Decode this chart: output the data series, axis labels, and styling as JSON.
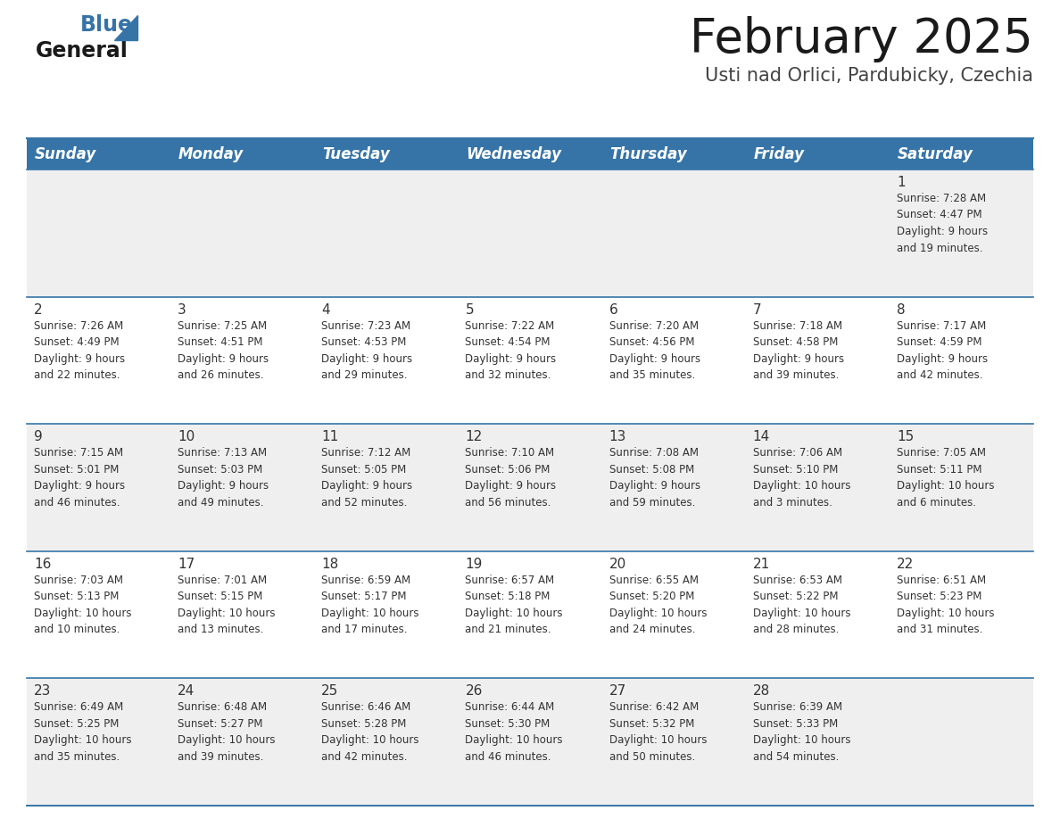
{
  "title": "February 2025",
  "subtitle": "Usti nad Orlici, Pardubicky, Czechia",
  "header_color": "#3674a8",
  "header_text_color": "#FFFFFF",
  "background_color": "#FFFFFF",
  "cell_bg_odd": "#efefef",
  "cell_bg_even": "#FFFFFF",
  "divider_color": "#3674a8",
  "day_names": [
    "Sunday",
    "Monday",
    "Tuesday",
    "Wednesday",
    "Thursday",
    "Friday",
    "Saturday"
  ],
  "title_fontsize": 38,
  "subtitle_fontsize": 15,
  "header_fontsize": 12,
  "cell_fontsize": 8.5,
  "day_number_fontsize": 11,
  "calendar": [
    [
      {
        "day": "",
        "info": ""
      },
      {
        "day": "",
        "info": ""
      },
      {
        "day": "",
        "info": ""
      },
      {
        "day": "",
        "info": ""
      },
      {
        "day": "",
        "info": ""
      },
      {
        "day": "",
        "info": ""
      },
      {
        "day": "1",
        "info": "Sunrise: 7:28 AM\nSunset: 4:47 PM\nDaylight: 9 hours\nand 19 minutes."
      }
    ],
    [
      {
        "day": "2",
        "info": "Sunrise: 7:26 AM\nSunset: 4:49 PM\nDaylight: 9 hours\nand 22 minutes."
      },
      {
        "day": "3",
        "info": "Sunrise: 7:25 AM\nSunset: 4:51 PM\nDaylight: 9 hours\nand 26 minutes."
      },
      {
        "day": "4",
        "info": "Sunrise: 7:23 AM\nSunset: 4:53 PM\nDaylight: 9 hours\nand 29 minutes."
      },
      {
        "day": "5",
        "info": "Sunrise: 7:22 AM\nSunset: 4:54 PM\nDaylight: 9 hours\nand 32 minutes."
      },
      {
        "day": "6",
        "info": "Sunrise: 7:20 AM\nSunset: 4:56 PM\nDaylight: 9 hours\nand 35 minutes."
      },
      {
        "day": "7",
        "info": "Sunrise: 7:18 AM\nSunset: 4:58 PM\nDaylight: 9 hours\nand 39 minutes."
      },
      {
        "day": "8",
        "info": "Sunrise: 7:17 AM\nSunset: 4:59 PM\nDaylight: 9 hours\nand 42 minutes."
      }
    ],
    [
      {
        "day": "9",
        "info": "Sunrise: 7:15 AM\nSunset: 5:01 PM\nDaylight: 9 hours\nand 46 minutes."
      },
      {
        "day": "10",
        "info": "Sunrise: 7:13 AM\nSunset: 5:03 PM\nDaylight: 9 hours\nand 49 minutes."
      },
      {
        "day": "11",
        "info": "Sunrise: 7:12 AM\nSunset: 5:05 PM\nDaylight: 9 hours\nand 52 minutes."
      },
      {
        "day": "12",
        "info": "Sunrise: 7:10 AM\nSunset: 5:06 PM\nDaylight: 9 hours\nand 56 minutes."
      },
      {
        "day": "13",
        "info": "Sunrise: 7:08 AM\nSunset: 5:08 PM\nDaylight: 9 hours\nand 59 minutes."
      },
      {
        "day": "14",
        "info": "Sunrise: 7:06 AM\nSunset: 5:10 PM\nDaylight: 10 hours\nand 3 minutes."
      },
      {
        "day": "15",
        "info": "Sunrise: 7:05 AM\nSunset: 5:11 PM\nDaylight: 10 hours\nand 6 minutes."
      }
    ],
    [
      {
        "day": "16",
        "info": "Sunrise: 7:03 AM\nSunset: 5:13 PM\nDaylight: 10 hours\nand 10 minutes."
      },
      {
        "day": "17",
        "info": "Sunrise: 7:01 AM\nSunset: 5:15 PM\nDaylight: 10 hours\nand 13 minutes."
      },
      {
        "day": "18",
        "info": "Sunrise: 6:59 AM\nSunset: 5:17 PM\nDaylight: 10 hours\nand 17 minutes."
      },
      {
        "day": "19",
        "info": "Sunrise: 6:57 AM\nSunset: 5:18 PM\nDaylight: 10 hours\nand 21 minutes."
      },
      {
        "day": "20",
        "info": "Sunrise: 6:55 AM\nSunset: 5:20 PM\nDaylight: 10 hours\nand 24 minutes."
      },
      {
        "day": "21",
        "info": "Sunrise: 6:53 AM\nSunset: 5:22 PM\nDaylight: 10 hours\nand 28 minutes."
      },
      {
        "day": "22",
        "info": "Sunrise: 6:51 AM\nSunset: 5:23 PM\nDaylight: 10 hours\nand 31 minutes."
      }
    ],
    [
      {
        "day": "23",
        "info": "Sunrise: 6:49 AM\nSunset: 5:25 PM\nDaylight: 10 hours\nand 35 minutes."
      },
      {
        "day": "24",
        "info": "Sunrise: 6:48 AM\nSunset: 5:27 PM\nDaylight: 10 hours\nand 39 minutes."
      },
      {
        "day": "25",
        "info": "Sunrise: 6:46 AM\nSunset: 5:28 PM\nDaylight: 10 hours\nand 42 minutes."
      },
      {
        "day": "26",
        "info": "Sunrise: 6:44 AM\nSunset: 5:30 PM\nDaylight: 10 hours\nand 46 minutes."
      },
      {
        "day": "27",
        "info": "Sunrise: 6:42 AM\nSunset: 5:32 PM\nDaylight: 10 hours\nand 50 minutes."
      },
      {
        "day": "28",
        "info": "Sunrise: 6:39 AM\nSunset: 5:33 PM\nDaylight: 10 hours\nand 54 minutes."
      },
      {
        "day": "",
        "info": ""
      }
    ]
  ]
}
